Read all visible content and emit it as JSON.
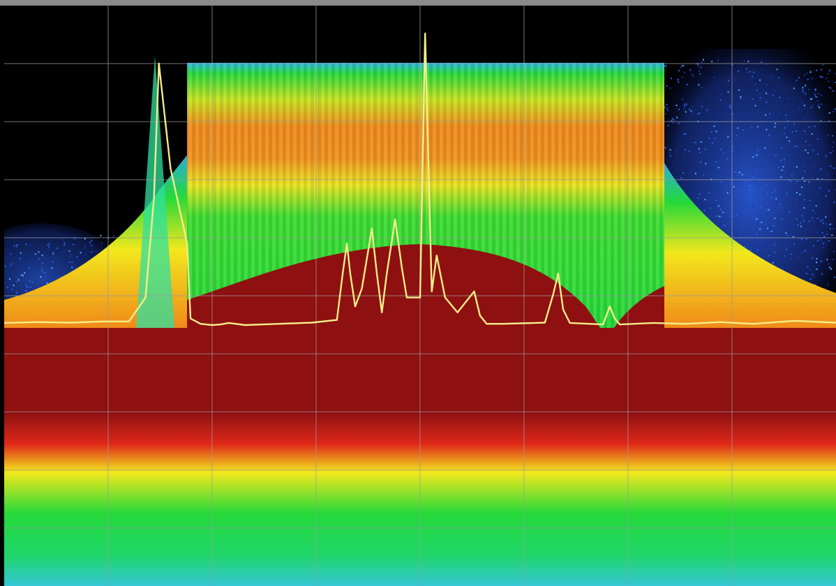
{
  "chart_data": {
    "type": "heatmap",
    "title": "",
    "xlabel": "",
    "ylabel": "",
    "grid": true,
    "grid_divisions": {
      "x": 8,
      "y": 10
    },
    "colormap": [
      "#0a0a0a",
      "#1f4fc8",
      "#35b7e6",
      "#25d93a",
      "#f2e81c",
      "#f08a1a",
      "#8f1010"
    ],
    "colors": {
      "background": "#000000",
      "grid": "#9a9a9a",
      "trace": "#f4ee8a",
      "density_low": "#1f4fc8",
      "density_mid": "#25d93a",
      "density_high": "#8f1010",
      "frame": "#8a8a8a"
    },
    "trace": {
      "name": "",
      "x": [
        0.0,
        0.04,
        0.08,
        0.12,
        0.15,
        0.17,
        0.18,
        0.186,
        0.2,
        0.22,
        0.224,
        0.236,
        0.25,
        0.26,
        0.27,
        0.29,
        0.33,
        0.37,
        0.4,
        0.407,
        0.412,
        0.416,
        0.422,
        0.43,
        0.442,
        0.448,
        0.454,
        0.46,
        0.47,
        0.478,
        0.484,
        0.5,
        0.506,
        0.514,
        0.52,
        0.53,
        0.545,
        0.565,
        0.572,
        0.58,
        0.6,
        0.65,
        0.66,
        0.666,
        0.672,
        0.68,
        0.72,
        0.728,
        0.734,
        0.74,
        0.78,
        0.82,
        0.86,
        0.9,
        0.95,
        1.0
      ],
      "y": [
        0.035,
        0.038,
        0.036,
        0.04,
        0.04,
        0.12,
        0.45,
        0.9,
        0.55,
        0.3,
        0.05,
        0.032,
        0.028,
        0.03,
        0.035,
        0.028,
        0.032,
        0.036,
        0.045,
        0.2,
        0.3,
        0.2,
        0.09,
        0.15,
        0.35,
        0.2,
        0.07,
        0.2,
        0.38,
        0.22,
        0.12,
        0.12,
        1.0,
        0.14,
        0.26,
        0.12,
        0.07,
        0.14,
        0.06,
        0.032,
        0.032,
        0.036,
        0.13,
        0.2,
        0.08,
        0.035,
        0.03,
        0.09,
        0.05,
        0.03,
        0.035,
        0.032,
        0.038,
        0.032,
        0.042,
        0.036
      ]
    }
  }
}
